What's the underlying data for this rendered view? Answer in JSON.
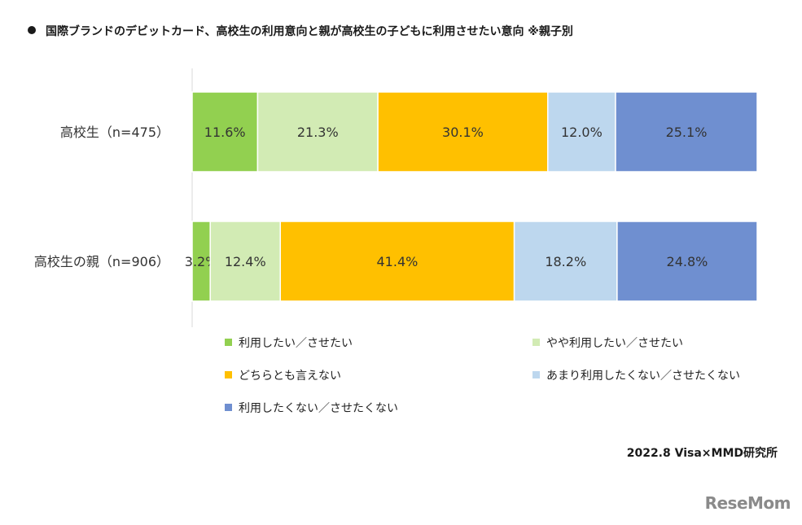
{
  "title": "国際ブランドのデビットカード、高校生の利用意向と親が高校生の子どもに利用させたい意向 ※親子別",
  "source": "2022.8 Visa×MMD研究所",
  "logo": "ReseMom",
  "chart_data": {
    "type": "bar",
    "orientation": "horizontal",
    "stacked": true,
    "percent_stacked": true,
    "categories": [
      "高校生（n=475）",
      "高校生の親（n=906）"
    ],
    "series": [
      {
        "name": "利用したい／させたい",
        "color": "#92d050",
        "values": [
          11.6,
          3.2
        ]
      },
      {
        "name": "やや利用したい／させたい",
        "color": "#d2ebb4",
        "values": [
          21.3,
          12.4
        ]
      },
      {
        "name": "どちらとも言えない",
        "color": "#ffc000",
        "values": [
          30.1,
          41.4
        ]
      },
      {
        "name": "あまり利用したくない／させたくない",
        "color": "#bdd7ee",
        "values": [
          12.0,
          18.2
        ]
      },
      {
        "name": "利用したくない／させたくない",
        "color": "#6f8fd0",
        "values": [
          25.1,
          24.8
        ]
      }
    ],
    "value_suffix": "%",
    "legend_position": "bottom"
  }
}
